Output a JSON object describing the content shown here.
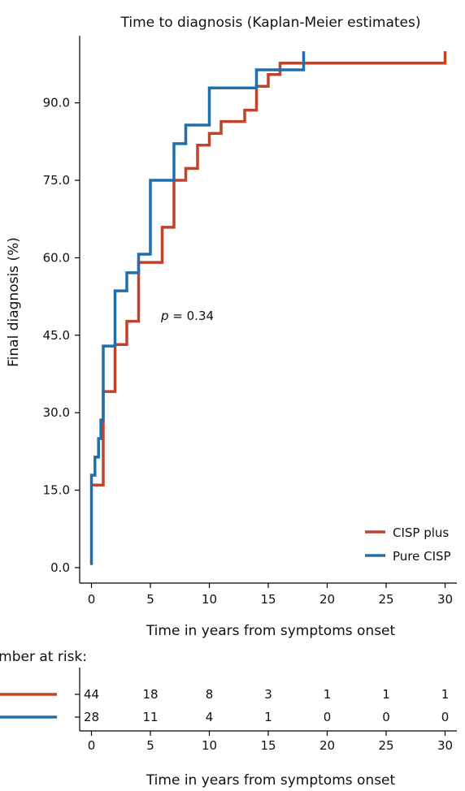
{
  "chart_data": [
    {
      "type": "line",
      "title": "Time to diagnosis (Kaplan-Meier estimates)",
      "xlabel": "Time in years from symptoms onset",
      "ylabel": "Final diagnosis (%)",
      "xlim": [
        -1,
        31
      ],
      "ylim": [
        -3,
        103
      ],
      "xticks": [
        0,
        5,
        10,
        15,
        20,
        25,
        30
      ],
      "yticks": [
        0,
        15,
        30,
        45,
        60,
        75,
        90
      ],
      "ytick_labels": [
        "0.0",
        "15.0",
        "30.0",
        "45.0",
        "60.0",
        "75.0",
        "90.0"
      ],
      "step": "post",
      "annotation": {
        "italic": "p",
        "text": " = 0.34"
      },
      "legend_position": "bottom-right",
      "series": [
        {
          "name": "CISP plus",
          "color": "#c0432b",
          "points": [
            [
              0,
              16
            ],
            [
              1,
              16
            ],
            [
              1,
              34.1
            ],
            [
              2,
              34.1
            ],
            [
              2,
              43.2
            ],
            [
              3,
              43.2
            ],
            [
              3,
              47.7
            ],
            [
              4,
              47.7
            ],
            [
              4,
              59.1
            ],
            [
              6,
              59.1
            ],
            [
              6,
              65.9
            ],
            [
              7,
              65.9
            ],
            [
              7,
              75
            ],
            [
              8,
              75
            ],
            [
              8,
              77.3
            ],
            [
              9,
              77.3
            ],
            [
              9,
              81.8
            ],
            [
              10,
              81.8
            ],
            [
              10,
              84.1
            ],
            [
              11,
              84.1
            ],
            [
              11,
              86.4
            ],
            [
              13,
              86.4
            ],
            [
              13,
              88.6
            ],
            [
              14,
              88.6
            ],
            [
              14,
              93.2
            ],
            [
              15,
              93.2
            ],
            [
              15,
              95.5
            ],
            [
              16,
              95.5
            ],
            [
              16,
              97.7
            ],
            [
              30,
              97.7
            ],
            [
              30,
              100
            ]
          ]
        },
        {
          "name": "Pure CISP",
          "color": "#1f6fad",
          "points": [
            [
              0,
              0.5
            ],
            [
              0,
              17.9
            ],
            [
              0.3,
              17.9
            ],
            [
              0.3,
              21.4
            ],
            [
              0.6,
              21.4
            ],
            [
              0.6,
              25
            ],
            [
              0.8,
              25
            ],
            [
              0.8,
              28.6
            ],
            [
              1,
              28.6
            ],
            [
              1,
              42.9
            ],
            [
              2,
              42.9
            ],
            [
              2,
              53.6
            ],
            [
              3,
              53.6
            ],
            [
              3,
              57.1
            ],
            [
              4,
              57.1
            ],
            [
              4,
              60.7
            ],
            [
              5,
              60.7
            ],
            [
              5,
              75
            ],
            [
              7,
              75
            ],
            [
              7,
              82.1
            ],
            [
              8,
              82.1
            ],
            [
              8,
              85.7
            ],
            [
              10,
              85.7
            ],
            [
              10,
              92.9
            ],
            [
              14,
              92.9
            ],
            [
              14,
              96.4
            ],
            [
              18,
              96.4
            ],
            [
              18,
              100
            ]
          ]
        }
      ]
    },
    {
      "type": "table",
      "title": "Number at risk:",
      "xlabel": "Time in years from symptoms onset",
      "xticks": [
        0,
        5,
        10,
        15,
        20,
        25,
        30
      ],
      "rows": [
        {
          "color": "#c0432b",
          "values": [
            "44",
            "18",
            "8",
            "3",
            "1",
            "1",
            "1"
          ]
        },
        {
          "color": "#1f6fad",
          "values": [
            "28",
            "11",
            "4",
            "1",
            "0",
            "0",
            "0"
          ]
        }
      ]
    }
  ]
}
